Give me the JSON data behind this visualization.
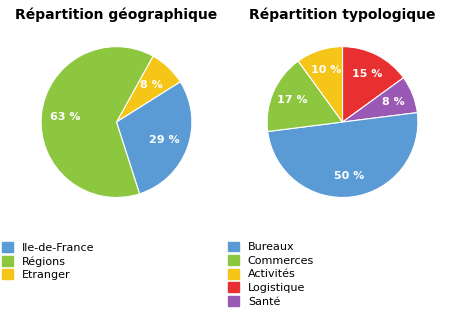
{
  "chart1_title": "Répartition géographique",
  "chart1_labels": [
    "Ile-de-France",
    "Régions",
    "Etranger"
  ],
  "chart1_values": [
    29,
    63,
    8
  ],
  "chart1_colors": [
    "#5B9BD5",
    "#8DC63F",
    "#F5C518"
  ],
  "chart1_startangle": 61,
  "chart1_counterclock": false,
  "chart2_title": "Répartition typologique",
  "chart2_labels": [
    "Bureaux",
    "Commerces",
    "Activités",
    "Logistique",
    "Santé"
  ],
  "chart2_values": [
    50,
    17,
    10,
    15,
    8
  ],
  "chart2_colors": [
    "#5B9BD5",
    "#8DC63F",
    "#F5C518",
    "#E83030",
    "#9B59B6"
  ],
  "chart2_startangle": 90,
  "chart2_counterclock": true,
  "chart2_order": [
    3,
    4,
    0,
    1,
    2
  ],
  "label_color": "white",
  "label_fontsize": 8,
  "title_fontsize": 10,
  "legend_fontsize": 8,
  "bg_color": "#FFFFFF"
}
